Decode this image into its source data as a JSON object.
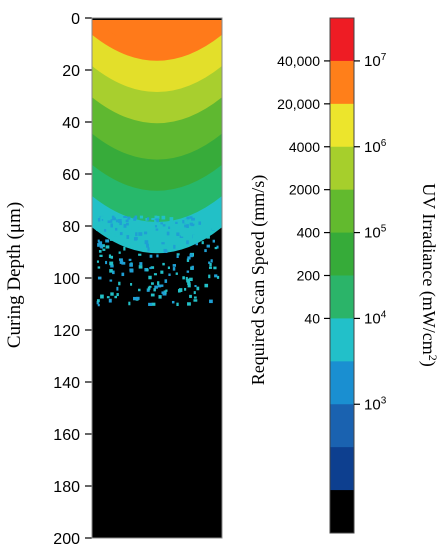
{
  "chart_data": [
    {
      "type": "heatmap",
      "ylabel": "Curing Depth (μm)",
      "ylim": [
        0,
        200
      ],
      "y_ticks": [
        "0",
        "20",
        "40",
        "60",
        "80",
        "100",
        "120",
        "140",
        "160",
        "180",
        "200"
      ],
      "inverted_y": true,
      "grid": false,
      "colors_by_depth": [
        {
          "from": 0,
          "to": 18,
          "color": "#ff7a1a"
        },
        {
          "from": 18,
          "to": 30,
          "color": "#e3df2a"
        },
        {
          "from": 30,
          "to": 42,
          "color": "#a8cf2e"
        },
        {
          "from": 42,
          "to": 56,
          "color": "#5fb830"
        },
        {
          "from": 56,
          "to": 68,
          "color": "#37ab3a"
        },
        {
          "from": 68,
          "to": 80,
          "color": "#27b86b"
        },
        {
          "from": 80,
          "to": 92,
          "color": "#22c0c7"
        },
        {
          "from": 92,
          "to": 200,
          "color": "#000000"
        }
      ]
    },
    {
      "type": "colorbar",
      "left_label": "Required Scan Speed (mm/s)",
      "right_label_main": "UV Irradiance (mW/cm",
      "right_label_sup": "2",
      "right_label_end": ")",
      "left_ticks": [
        "40,000",
        "20,000",
        "4000",
        "2000",
        "400",
        "200",
        "40"
      ],
      "right_ticks": [
        {
          "base": "10",
          "exp": "7"
        },
        {
          "base": "10",
          "exp": "6"
        },
        {
          "base": "10",
          "exp": "5"
        },
        {
          "base": "10",
          "exp": "4"
        },
        {
          "base": "10",
          "exp": "3"
        }
      ],
      "bands_top_to_bottom": [
        "#ee1c24",
        "#ff7f1a",
        "#ece52c",
        "#a6cf2c",
        "#62ba2e",
        "#36ab39",
        "#2bb469",
        "#22c0c9",
        "#1a8fd1",
        "#1a62b0",
        "#0d3f8f",
        "#000000"
      ]
    }
  ]
}
